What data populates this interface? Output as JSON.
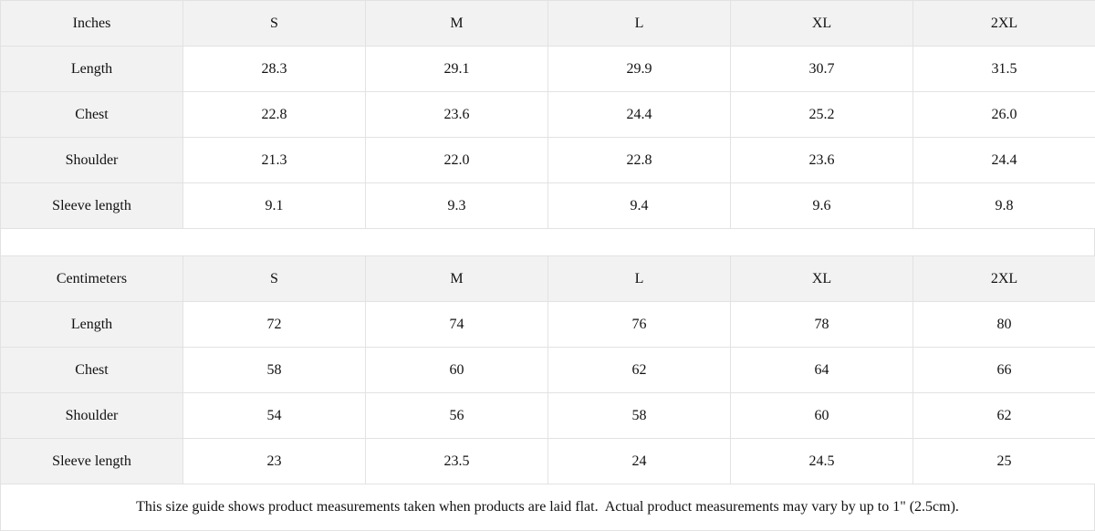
{
  "tables": [
    {
      "header": [
        "Inches",
        "S",
        "M",
        "L",
        "XL",
        "2XL"
      ],
      "rows": [
        [
          "Length",
          "28.3",
          "29.1",
          "29.9",
          "30.7",
          "31.5"
        ],
        [
          "Chest",
          "22.8",
          "23.6",
          "24.4",
          "25.2",
          "26.0"
        ],
        [
          "Shoulder",
          "21.3",
          "22.0",
          "22.8",
          "23.6",
          "24.4"
        ],
        [
          "Sleeve length",
          "9.1",
          "9.3",
          "9.4",
          "9.6",
          "9.8"
        ]
      ]
    },
    {
      "header": [
        "Centimeters",
        "S",
        "M",
        "L",
        "XL",
        "2XL"
      ],
      "rows": [
        [
          "Length",
          "72",
          "74",
          "76",
          "78",
          "80"
        ],
        [
          "Chest",
          "58",
          "60",
          "62",
          "64",
          "66"
        ],
        [
          "Shoulder",
          "54",
          "56",
          "58",
          "60",
          "62"
        ],
        [
          "Sleeve length",
          "23",
          "23.5",
          "24",
          "24.5",
          "25"
        ]
      ]
    }
  ],
  "note": "This size guide shows product measurements taken when products are laid flat.  Actual product measurements may vary by up to 1\" (2.5cm)."
}
